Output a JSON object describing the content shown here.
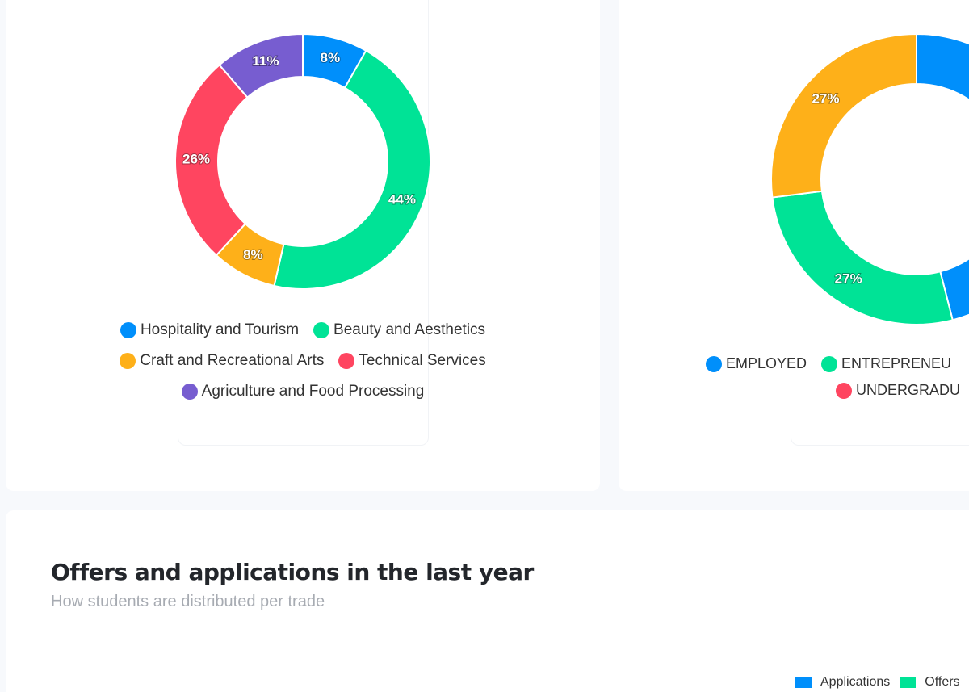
{
  "chart_data": [
    {
      "type": "pie",
      "variant": "doughnut",
      "labels": [
        "Hospitality and Tourism",
        "Beauty and Aesthetics",
        "Craft and Recreational Arts",
        "Technical Services",
        "Agriculture and Food Processing"
      ],
      "values": [
        8,
        44,
        8,
        26,
        11
      ],
      "data_labels": [
        "8%",
        "44%",
        "8%",
        "26%",
        "11%"
      ],
      "colors": [
        "#008ffb",
        "#00e396",
        "#feb019",
        "#ff4560",
        "#775dd0"
      ],
      "legend": "bottom"
    },
    {
      "type": "pie",
      "variant": "doughnut",
      "labels": [
        "EMPLOYED",
        "ENTREPRENEUR",
        "",
        "UNDERGRADUATE"
      ],
      "legend_labels": [
        "EMPLOYED",
        "ENTREPRENEU",
        "UNDERGRADU"
      ],
      "values": [
        46,
        27,
        27,
        0
      ],
      "data_labels": [
        "",
        "27%",
        "27%",
        ""
      ],
      "colors": [
        "#008ffb",
        "#00e396",
        "#feb019",
        "#ff4560"
      ],
      "legend": "bottom"
    }
  ],
  "bottom": {
    "title": "Offers and applications in the last year",
    "subtitle": "How students are distributed per trade",
    "legend": [
      {
        "label": "Applications",
        "color": "#008ffb"
      },
      {
        "label": "Offers",
        "color": "#00e396"
      }
    ]
  }
}
